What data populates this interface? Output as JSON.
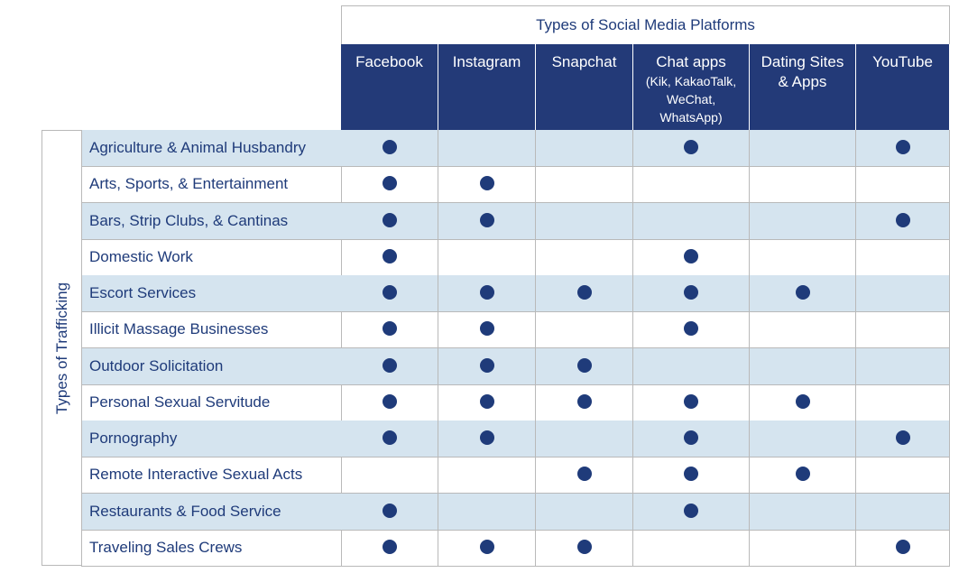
{
  "super_header": "Types of Social Media Platforms",
  "side_header": "Types of Trafficking",
  "columns": [
    {
      "label": "Facebook",
      "sub": ""
    },
    {
      "label": "Instagram",
      "sub": ""
    },
    {
      "label": "Snapchat",
      "sub": ""
    },
    {
      "label": "Chat apps",
      "sub": "(Kik, KakaoTalk,\nWeChat,\nWhatsApp)"
    },
    {
      "label": "Dating Sites\n& Apps",
      "sub": ""
    },
    {
      "label": "YouTube",
      "sub": ""
    }
  ],
  "rows": [
    {
      "label": "Agriculture & Animal Husbandry",
      "marks": [
        1,
        0,
        0,
        1,
        0,
        1
      ]
    },
    {
      "label": "Arts, Sports, & Entertainment",
      "marks": [
        1,
        1,
        0,
        0,
        0,
        0
      ]
    },
    {
      "label": "Bars, Strip Clubs, & Cantinas",
      "marks": [
        1,
        1,
        0,
        0,
        0,
        1
      ]
    },
    {
      "label": "Domestic Work",
      "marks": [
        1,
        0,
        0,
        1,
        0,
        0
      ]
    },
    {
      "label": "Escort Services",
      "marks": [
        1,
        1,
        1,
        1,
        1,
        0
      ]
    },
    {
      "label": "Illicit Massage Businesses",
      "marks": [
        1,
        1,
        0,
        1,
        0,
        0
      ]
    },
    {
      "label": "Outdoor Solicitation",
      "marks": [
        1,
        1,
        1,
        0,
        0,
        0
      ]
    },
    {
      "label": "Personal Sexual Servitude",
      "marks": [
        1,
        1,
        1,
        1,
        1,
        0
      ]
    },
    {
      "label": "Pornography",
      "marks": [
        1,
        1,
        0,
        1,
        0,
        1
      ]
    },
    {
      "label": "Remote Interactive Sexual Acts",
      "marks": [
        0,
        0,
        1,
        1,
        1,
        0
      ]
    },
    {
      "label": "Restaurants & Food Service",
      "marks": [
        1,
        0,
        0,
        1,
        0,
        0
      ]
    },
    {
      "label": "Traveling Sales Crews",
      "marks": [
        1,
        1,
        1,
        0,
        0,
        1
      ]
    }
  ],
  "colors": {
    "header_bg": "#233a78",
    "text": "#1f3b7a",
    "shade": "#d5e4ef",
    "dot": "#1f3b7a"
  }
}
